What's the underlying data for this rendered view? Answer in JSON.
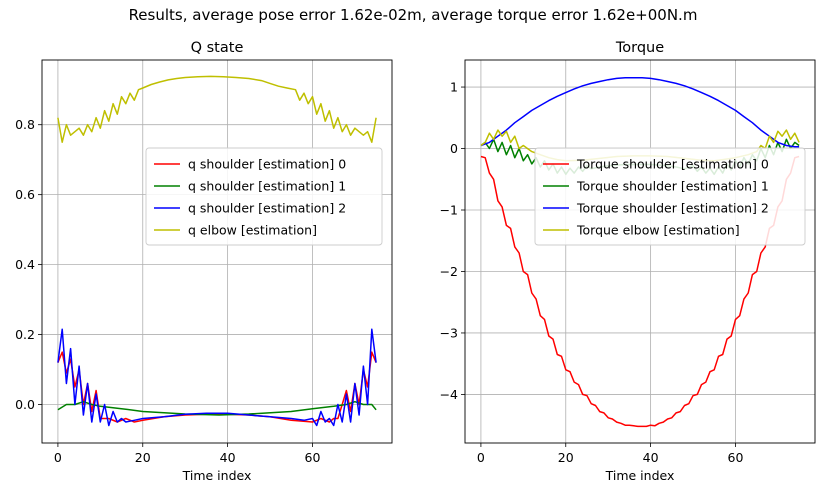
{
  "figure_title": "Results, average pose error 1.62e-02m, average torque error 1.62e+00N.m",
  "chart_data": [
    {
      "type": "line",
      "title": "Q state",
      "xlabel": "Time index",
      "ylabel": "",
      "xlim": [
        -3.75,
        78.75
      ],
      "ylim": [
        -0.11,
        0.985
      ],
      "xticks": [
        0,
        20,
        40,
        60
      ],
      "yticks": [
        0.0,
        0.2,
        0.4,
        0.6,
        0.8
      ],
      "grid": true,
      "legend_position": "center-right",
      "series": [
        {
          "name": "q shoulder [estimation] 0",
          "color": "#ff0000",
          "x": [
            0,
            1,
            2,
            3,
            4,
            5,
            6,
            7,
            8,
            9,
            10,
            12,
            14,
            16,
            18,
            20,
            25,
            30,
            35,
            40,
            45,
            50,
            55,
            60,
            62,
            64,
            65,
            66,
            67,
            68,
            69,
            70,
            71,
            72,
            73,
            74,
            75
          ],
          "y": [
            0.12,
            0.15,
            0.09,
            0.13,
            0.05,
            0.1,
            0.0,
            0.06,
            -0.02,
            0.04,
            -0.04,
            -0.04,
            -0.05,
            -0.04,
            -0.05,
            -0.045,
            -0.035,
            -0.03,
            -0.028,
            -0.028,
            -0.03,
            -0.035,
            -0.045,
            -0.05,
            -0.04,
            -0.05,
            -0.04,
            -0.04,
            0.0,
            0.04,
            -0.02,
            0.06,
            0.0,
            0.1,
            0.05,
            0.15,
            0.12
          ]
        },
        {
          "name": "q shoulder [estimation] 1",
          "color": "#008000",
          "x": [
            0,
            2,
            4,
            6,
            8,
            10,
            15,
            20,
            30,
            38,
            45,
            55,
            60,
            65,
            68,
            70,
            72,
            74,
            75
          ],
          "y": [
            -0.015,
            0.0,
            0.0,
            0.008,
            0.0,
            -0.005,
            -0.012,
            -0.02,
            -0.027,
            -0.03,
            -0.027,
            -0.02,
            -0.012,
            -0.005,
            0.0,
            0.008,
            0.0,
            0.0,
            -0.015
          ]
        },
        {
          "name": "q shoulder [estimation] 2",
          "color": "#0000ff",
          "x": [
            0,
            1,
            2,
            3,
            4,
            5,
            6,
            7,
            8,
            9,
            10,
            11,
            12,
            13,
            14,
            15,
            16,
            18,
            20,
            25,
            30,
            35,
            40,
            45,
            50,
            55,
            58,
            60,
            61,
            62,
            63,
            64,
            65,
            66,
            67,
            68,
            69,
            70,
            71,
            72,
            73,
            74,
            75
          ],
          "y": [
            0.12,
            0.215,
            0.06,
            0.16,
            0.0,
            0.11,
            -0.03,
            0.06,
            -0.05,
            0.03,
            -0.05,
            0.0,
            -0.06,
            -0.02,
            -0.05,
            -0.04,
            -0.05,
            -0.045,
            -0.04,
            -0.035,
            -0.028,
            -0.025,
            -0.025,
            -0.03,
            -0.035,
            -0.04,
            -0.045,
            -0.04,
            -0.06,
            -0.02,
            -0.05,
            -0.04,
            -0.06,
            0.0,
            -0.05,
            0.03,
            -0.05,
            0.06,
            -0.03,
            0.11,
            0.0,
            0.215,
            0.12
          ]
        },
        {
          "name": "q elbow [estimation]",
          "color": "#bfbf00",
          "x": [
            0,
            1,
            2,
            3,
            4,
            5,
            6,
            7,
            8,
            9,
            10,
            11,
            12,
            13,
            14,
            15,
            16,
            17,
            18,
            19,
            20,
            22,
            24,
            26,
            28,
            30,
            33,
            36,
            39,
            42,
            45,
            48,
            50,
            52,
            54,
            56,
            57,
            58,
            59,
            60,
            61,
            62,
            63,
            64,
            65,
            66,
            67,
            68,
            69,
            70,
            71,
            72,
            73,
            74,
            75
          ],
          "y": [
            0.82,
            0.75,
            0.8,
            0.77,
            0.78,
            0.79,
            0.77,
            0.8,
            0.78,
            0.82,
            0.79,
            0.84,
            0.81,
            0.86,
            0.83,
            0.88,
            0.86,
            0.89,
            0.87,
            0.9,
            0.905,
            0.915,
            0.922,
            0.928,
            0.932,
            0.935,
            0.937,
            0.938,
            0.937,
            0.935,
            0.932,
            0.926,
            0.918,
            0.91,
            0.905,
            0.9,
            0.87,
            0.89,
            0.86,
            0.88,
            0.83,
            0.86,
            0.81,
            0.84,
            0.79,
            0.82,
            0.78,
            0.8,
            0.77,
            0.79,
            0.78,
            0.77,
            0.78,
            0.75,
            0.82
          ]
        }
      ]
    },
    {
      "type": "line",
      "title": "Torque",
      "xlabel": "Time index",
      "ylabel": "",
      "xlim": [
        -3.75,
        78.75
      ],
      "ylim": [
        -4.79,
        1.44
      ],
      "xticks": [
        0,
        20,
        40,
        60
      ],
      "yticks": [
        -4,
        -3,
        -2,
        -1,
        0,
        1
      ],
      "grid": true,
      "legend_position": "center-right",
      "series": [
        {
          "name": "Torque shoulder [estimation] 0",
          "color": "#ff0000",
          "x": [
            0,
            1,
            2,
            3,
            4,
            5,
            6,
            7,
            8,
            9,
            10,
            11,
            12,
            13,
            14,
            15,
            16,
            17,
            18,
            19,
            20,
            21,
            22,
            23,
            24,
            25,
            26,
            27,
            28,
            29,
            30,
            31,
            32,
            33,
            34,
            35,
            36,
            37,
            38,
            39,
            40,
            41,
            42,
            43,
            44,
            45,
            46,
            47,
            48,
            49,
            50,
            51,
            52,
            53,
            54,
            55,
            56,
            57,
            58,
            59,
            60,
            61,
            62,
            63,
            64,
            65,
            66,
            67,
            68,
            69,
            70,
            71,
            72,
            73,
            74,
            75
          ],
          "y": [
            -0.13,
            -0.15,
            -0.4,
            -0.5,
            -0.85,
            -0.95,
            -1.25,
            -1.3,
            -1.6,
            -1.7,
            -2.0,
            -2.05,
            -2.35,
            -2.45,
            -2.72,
            -2.78,
            -3.05,
            -3.1,
            -3.35,
            -3.38,
            -3.6,
            -3.63,
            -3.8,
            -3.84,
            -4.0,
            -4.02,
            -4.15,
            -4.18,
            -4.28,
            -4.3,
            -4.38,
            -4.4,
            -4.45,
            -4.47,
            -4.5,
            -4.5,
            -4.51,
            -4.52,
            -4.52,
            -4.52,
            -4.5,
            -4.51,
            -4.47,
            -4.45,
            -4.4,
            -4.38,
            -4.3,
            -4.28,
            -4.18,
            -4.15,
            -4.02,
            -4.0,
            -3.84,
            -3.8,
            -3.63,
            -3.6,
            -3.38,
            -3.35,
            -3.1,
            -3.05,
            -2.78,
            -2.72,
            -2.45,
            -2.35,
            -2.05,
            -2.0,
            -1.7,
            -1.6,
            -1.3,
            -1.25,
            -0.95,
            -0.85,
            -0.5,
            -0.4,
            -0.15,
            -0.13
          ]
        },
        {
          "name": "Torque shoulder [estimation] 1",
          "color": "#008000",
          "x": [
            0,
            1,
            2,
            3,
            4,
            5,
            6,
            7,
            8,
            9,
            10,
            11,
            12,
            13,
            14,
            15,
            16,
            17,
            18,
            19,
            20,
            21,
            22,
            23,
            24,
            25,
            26,
            28,
            30,
            32,
            34,
            36,
            38,
            40,
            42,
            44,
            46,
            48,
            50,
            51,
            52,
            53,
            54,
            55,
            56,
            57,
            58,
            59,
            60,
            61,
            62,
            63,
            64,
            65,
            66,
            67,
            68,
            69,
            70,
            71,
            72,
            73,
            74,
            75
          ],
          "y": [
            0.05,
            0.1,
            0.0,
            0.15,
            -0.05,
            0.1,
            -0.1,
            0.05,
            -0.15,
            0.0,
            -0.2,
            -0.1,
            -0.25,
            -0.15,
            -0.3,
            -0.2,
            -0.35,
            -0.25,
            -0.4,
            -0.3,
            -0.42,
            -0.32,
            -0.4,
            -0.3,
            -0.37,
            -0.28,
            -0.33,
            -0.3,
            -0.28,
            -0.27,
            -0.26,
            -0.26,
            -0.26,
            -0.26,
            -0.27,
            -0.28,
            -0.3,
            -0.33,
            -0.28,
            -0.37,
            -0.3,
            -0.4,
            -0.32,
            -0.42,
            -0.3,
            -0.4,
            -0.25,
            -0.35,
            -0.2,
            -0.3,
            -0.15,
            -0.25,
            -0.1,
            -0.2,
            0.0,
            -0.15,
            0.05,
            -0.1,
            0.1,
            -0.05,
            0.15,
            0.0,
            0.1,
            0.05
          ]
        },
        {
          "name": "Torque shoulder [estimation] 2",
          "color": "#0000ff",
          "x": [
            0,
            2,
            4,
            6,
            8,
            10,
            12,
            14,
            16,
            18,
            20,
            22,
            24,
            26,
            28,
            30,
            32,
            34,
            36,
            38,
            40,
            42,
            44,
            46,
            48,
            50,
            52,
            54,
            56,
            58,
            60,
            62,
            64,
            66,
            68,
            70,
            72,
            74,
            75
          ],
          "y": [
            0.05,
            0.1,
            0.2,
            0.3,
            0.42,
            0.52,
            0.62,
            0.7,
            0.78,
            0.85,
            0.91,
            0.97,
            1.02,
            1.06,
            1.09,
            1.12,
            1.14,
            1.15,
            1.15,
            1.15,
            1.14,
            1.12,
            1.09,
            1.06,
            1.02,
            0.97,
            0.91,
            0.85,
            0.78,
            0.7,
            0.62,
            0.52,
            0.42,
            0.3,
            0.2,
            0.1,
            0.05,
            0.03,
            0.03
          ]
        },
        {
          "name": "Torque elbow [estimation]",
          "color": "#bfbf00",
          "x": [
            0,
            1,
            2,
            3,
            4,
            5,
            6,
            7,
            8,
            9,
            10,
            12,
            14,
            16,
            18,
            20,
            24,
            28,
            32,
            36,
            40,
            44,
            48,
            52,
            55,
            57,
            60,
            63,
            65,
            66,
            67,
            68,
            69,
            70,
            71,
            72,
            73,
            74,
            75
          ],
          "y": [
            0.05,
            0.1,
            0.25,
            0.15,
            0.3,
            0.2,
            0.28,
            0.1,
            0.2,
            0.0,
            0.05,
            -0.05,
            -0.1,
            -0.15,
            -0.18,
            -0.2,
            -0.19,
            -0.16,
            -0.13,
            -0.12,
            -0.12,
            -0.13,
            -0.16,
            -0.19,
            -0.2,
            -0.18,
            -0.15,
            -0.1,
            -0.05,
            0.05,
            0.0,
            0.2,
            0.1,
            0.28,
            0.2,
            0.3,
            0.15,
            0.25,
            0.1
          ]
        }
      ]
    }
  ]
}
